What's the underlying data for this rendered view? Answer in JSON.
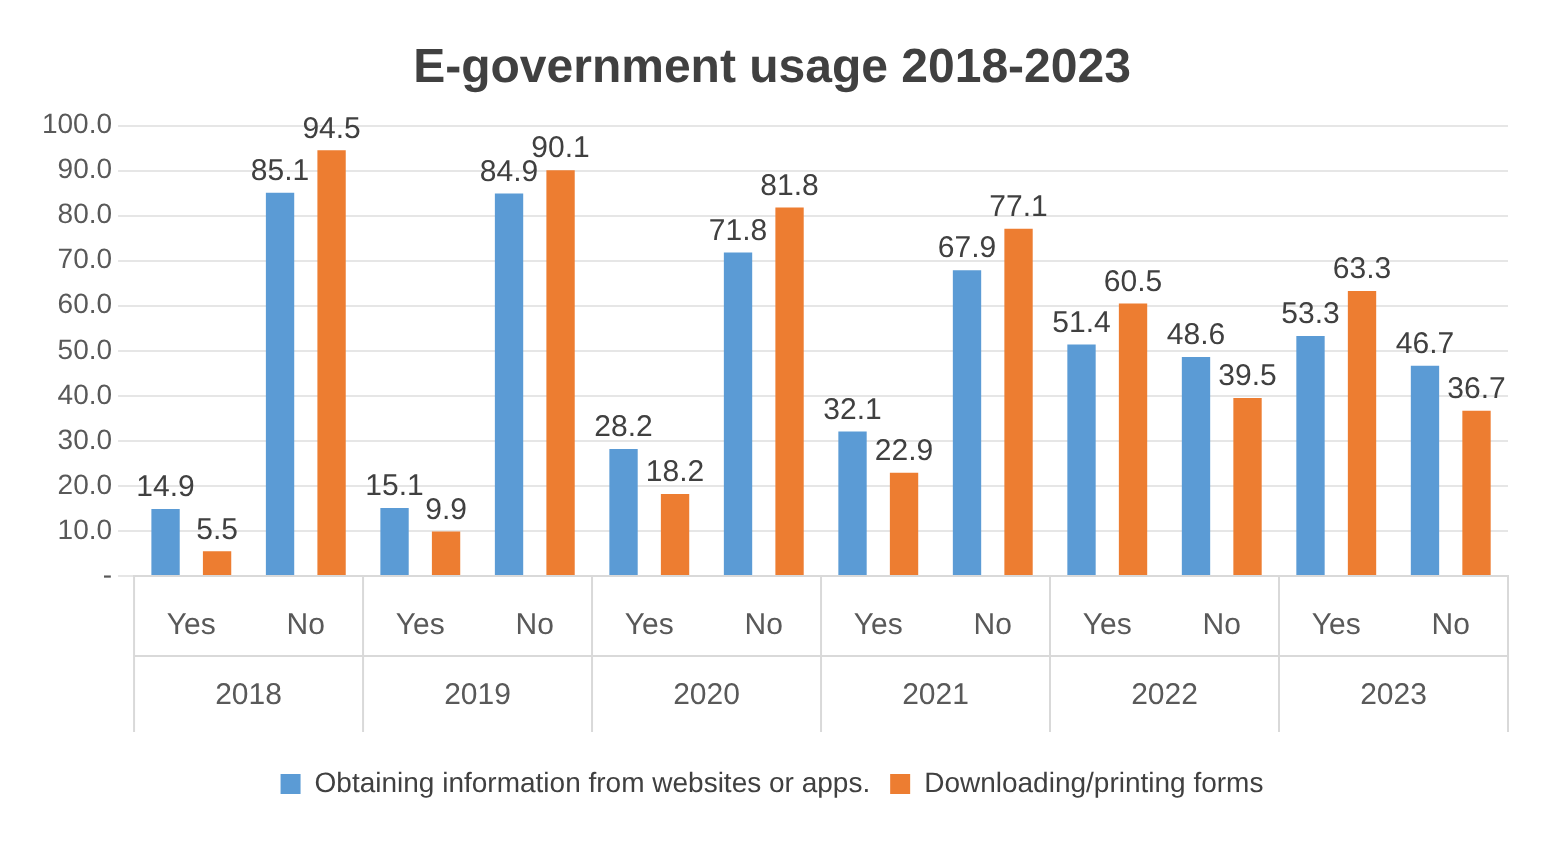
{
  "chart_data": {
    "type": "bar",
    "title": "E-government usage 2018-2023",
    "categories": [
      "Yes",
      "No",
      "Yes",
      "No",
      "Yes",
      "No",
      "Yes",
      "No",
      "Yes",
      "No",
      "Yes",
      "No"
    ],
    "annotations": [
      "2018",
      "2019",
      "2020",
      "2021",
      "2022",
      "2023"
    ],
    "series": [
      {
        "name": "Obtaining information from websites or apps.",
        "color": "#5b9bd5",
        "values": [
          14.9,
          85.1,
          15.1,
          84.9,
          28.2,
          71.8,
          32.1,
          67.9,
          51.4,
          48.6,
          53.3,
          46.7
        ]
      },
      {
        "name": "Downloading/printing forms",
        "color": "#ed7d31",
        "values": [
          5.5,
          94.5,
          9.9,
          90.1,
          18.2,
          81.8,
          22.9,
          77.1,
          60.5,
          39.5,
          63.3,
          36.7
        ]
      }
    ],
    "ylim": [
      0,
      100
    ],
    "yticks": [
      {
        "value": 0,
        "label": "-"
      },
      {
        "value": 10,
        "label": "10.0"
      },
      {
        "value": 20,
        "label": "20.0"
      },
      {
        "value": 30,
        "label": "30.0"
      },
      {
        "value": 40,
        "label": "40.0"
      },
      {
        "value": 50,
        "label": "50.0"
      },
      {
        "value": 60,
        "label": "60.0"
      },
      {
        "value": 70,
        "label": "70.0"
      },
      {
        "value": 80,
        "label": "80.0"
      },
      {
        "value": 90,
        "label": "90.0"
      },
      {
        "value": 100,
        "label": "100.0"
      }
    ],
    "grid": "y",
    "legend": "bottom",
    "data_labels": true
  }
}
